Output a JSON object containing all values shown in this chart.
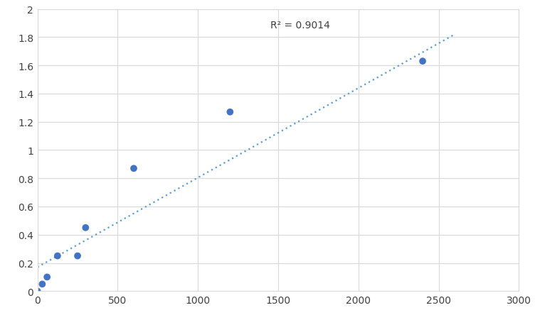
{
  "x_data": [
    0,
    30,
    60,
    125,
    250,
    300,
    600,
    1200,
    2400
  ],
  "y_data": [
    0.0,
    0.05,
    0.1,
    0.25,
    0.25,
    0.45,
    0.87,
    1.27,
    1.63
  ],
  "r_squared_text": "R² = 0.9014",
  "r_squared_x": 1450,
  "r_squared_y": 1.92,
  "trendline_x": [
    0,
    2600
  ],
  "trendline_y": [
    0.17,
    1.82
  ],
  "xlim": [
    0,
    3000
  ],
  "ylim": [
    0,
    2
  ],
  "xticks": [
    0,
    500,
    1000,
    1500,
    2000,
    2500,
    3000
  ],
  "yticks": [
    0,
    0.2,
    0.4,
    0.6,
    0.8,
    1.0,
    1.2,
    1.4,
    1.6,
    1.8,
    2.0
  ],
  "dot_color": "#4472C4",
  "line_color": "#5B9BD5",
  "background_color": "#ffffff",
  "grid_color": "#D9D9D9",
  "marker_size": 7
}
